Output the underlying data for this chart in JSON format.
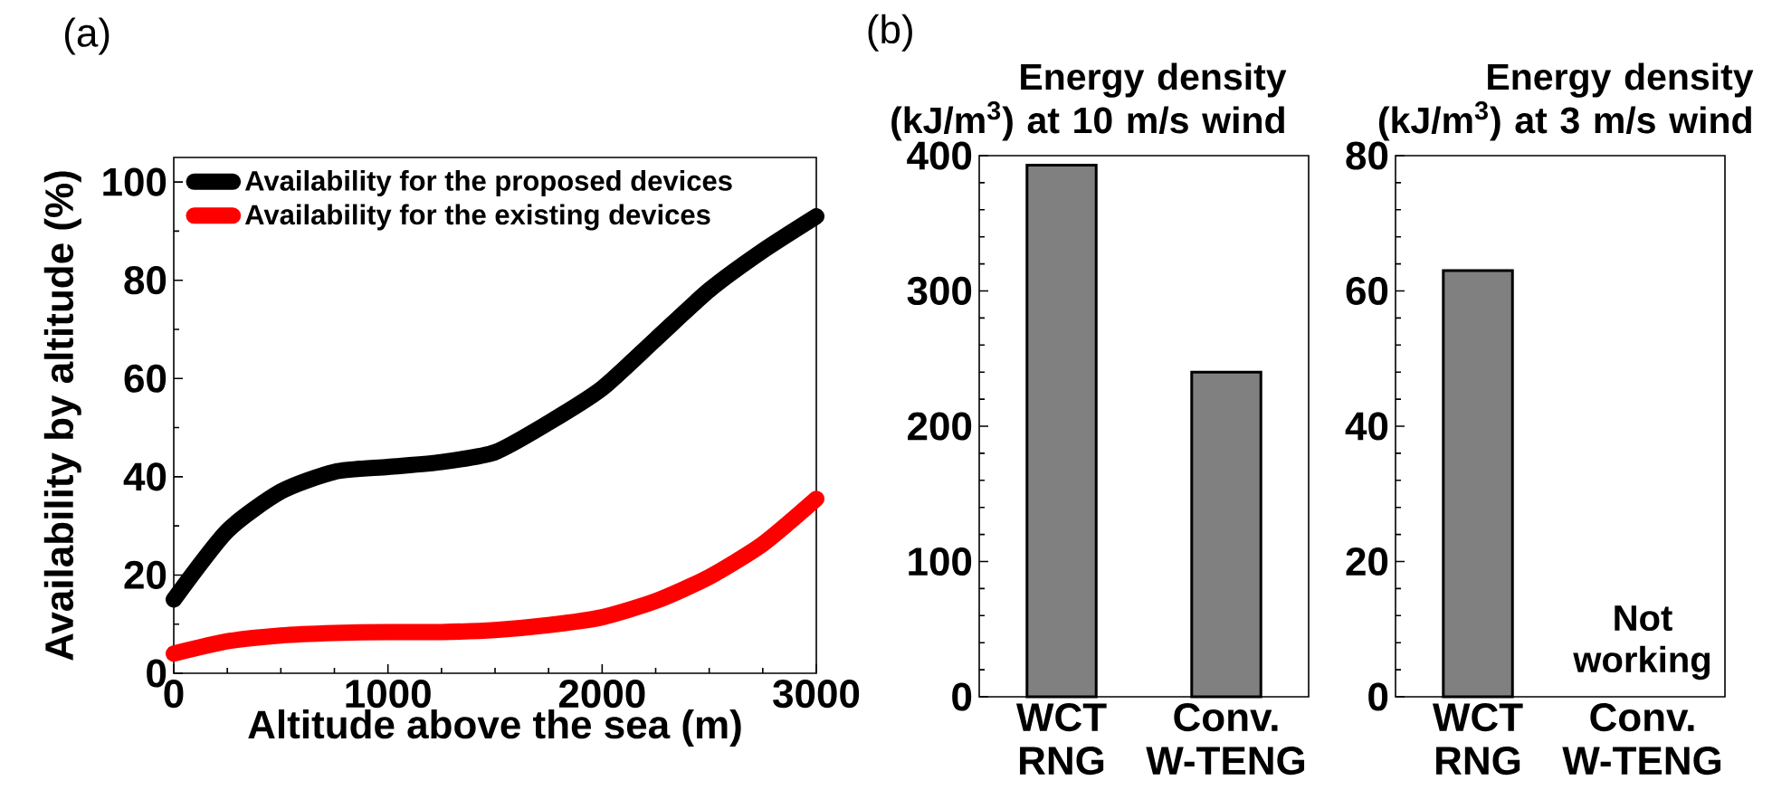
{
  "chart_data": [
    {
      "type": "line",
      "annotations": [
        "(a)"
      ],
      "xlabel": "Altitude above the sea (m)",
      "ylabel": "Availability by altitude (%)",
      "x": [
        0,
        250,
        500,
        750,
        1000,
        1250,
        1500,
        1750,
        2000,
        2250,
        2500,
        2750,
        3000
      ],
      "series": [
        {
          "name": "Availability for the proposed devices",
          "color": "#000000",
          "values": [
            15,
            29,
            37,
            41,
            42,
            43,
            45,
            51,
            58,
            68,
            78,
            86,
            93
          ]
        },
        {
          "name": "Availability for the existing devices",
          "color": "#ff0000",
          "values": [
            4,
            6.5,
            7.7,
            8.2,
            8.4,
            8.4,
            8.8,
            9.8,
            11.4,
            14.7,
            19.6,
            26.3,
            35.5
          ]
        }
      ],
      "xlim": [
        0,
        3000
      ],
      "xticks": [
        0,
        1000,
        2000,
        3000
      ],
      "ylim": [
        0,
        105
      ],
      "yticks": [
        0,
        20,
        40,
        60,
        80,
        100
      ],
      "legend": "top left",
      "marker": "none",
      "line_style": "solid"
    },
    {
      "type": "bar",
      "title": "Energy density (kJ/m$^{3}$) at 10 m/s wind",
      "annotations": [
        "(b)"
      ],
      "categories": [
        "WCT RNG",
        "Conv. W-TENG"
      ],
      "values": [
        393,
        240
      ],
      "color": "#808080",
      "ylim": [
        0,
        400
      ],
      "yticks": [
        0,
        100,
        200,
        300,
        400
      ]
    },
    {
      "type": "bar",
      "title": "Energy density (kJ/m$^{3}$) at 3 m/s wind",
      "annotations": [
        "Not working"
      ],
      "categories": [
        "WCT RNG",
        "Conv. W-TENG"
      ],
      "values": [
        63,
        null
      ],
      "color": "#808080",
      "ylim": [
        0,
        80
      ],
      "yticks": [
        0,
        20,
        40,
        60,
        80
      ]
    }
  ]
}
